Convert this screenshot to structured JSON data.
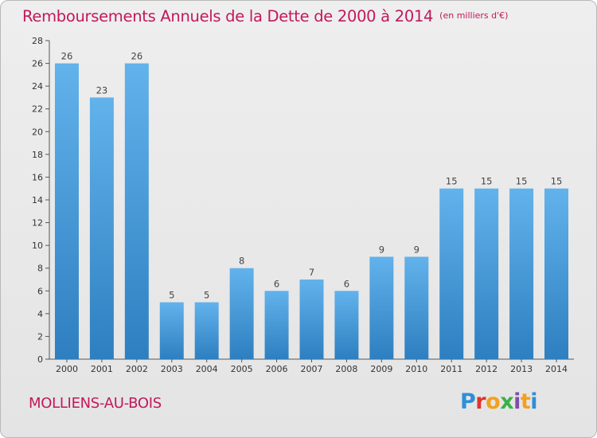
{
  "header": {
    "title": "Remboursements Annuels de la Dette de 2000 à 2014",
    "unit": "(en milliers d'€)"
  },
  "footer": {
    "commune": "MOLLIENS-AU-BOIS",
    "brand": {
      "letters": [
        "P",
        "r",
        "o",
        "x",
        "i",
        "t",
        "i"
      ],
      "colors": [
        "#2f8fd6",
        "#e2332f",
        "#f2a11f",
        "#3bb04a",
        "#7b4fa8",
        "#f2a11f",
        "#2f8fd6"
      ]
    }
  },
  "colors": {
    "bar_dark": "#2e7fc0",
    "bar_light": "#62b2ec",
    "title": "#c2185b"
  },
  "chart_data": {
    "type": "bar",
    "categories": [
      "2000",
      "2001",
      "2002",
      "2003",
      "2004",
      "2005",
      "2006",
      "2007",
      "2008",
      "2009",
      "2010",
      "2011",
      "2012",
      "2013",
      "2014"
    ],
    "values": [
      26,
      23,
      26,
      5,
      5,
      8,
      6,
      7,
      6,
      9,
      9,
      15,
      15,
      15,
      15
    ],
    "value_labels": [
      "26",
      "23",
      "26",
      "5",
      "5",
      "8",
      "6",
      "7",
      "6",
      "9",
      "9",
      "15",
      "15",
      "15",
      "15"
    ],
    "title": "Remboursements Annuels de la Dette de 2000 à 2014",
    "unit": "(en milliers d'€)",
    "xlabel": "",
    "ylabel": "",
    "ylim": [
      0,
      28
    ],
    "yticks": [
      "0",
      "2",
      "4",
      "6",
      "8",
      "10",
      "12",
      "14",
      "16",
      "18",
      "20",
      "22",
      "24",
      "26",
      "28"
    ],
    "grid": false,
    "legend": "none"
  }
}
